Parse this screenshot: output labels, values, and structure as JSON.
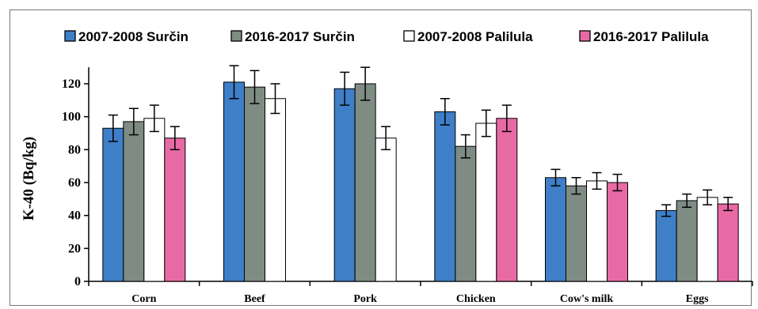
{
  "chart_data": {
    "type": "bar",
    "title": "",
    "xlabel": "",
    "ylabel": "K-40 (Bq/kg)",
    "ylim": [
      0,
      130
    ],
    "yticks": [
      0,
      20,
      40,
      60,
      80,
      100,
      120
    ],
    "grid": false,
    "legend_position": "top",
    "categories": [
      "Corn",
      "Beef",
      "Pork",
      "Chicken",
      "Cow's milk",
      "Eggs"
    ],
    "series": [
      {
        "name": "2007-2008 Surčin",
        "color": "#3f7fc8",
        "values": [
          93,
          121,
          117,
          103,
          63,
          43
        ],
        "errors": [
          8,
          10,
          10,
          8,
          5,
          3.5
        ]
      },
      {
        "name": "2016-2017 Surčin",
        "color": "#7f8c84",
        "values": [
          97,
          118,
          120,
          82,
          58,
          49
        ],
        "errors": [
          8,
          10,
          10,
          7,
          5,
          4
        ]
      },
      {
        "name": "2007-2008 Palilula",
        "color": "#ffffff",
        "values": [
          99,
          111,
          87,
          96,
          61,
          51
        ],
        "errors": [
          8,
          9,
          7,
          8,
          5,
          4.5
        ]
      },
      {
        "name": "2016-2017 Palilula",
        "color": "#e86aa5",
        "values": [
          87,
          null,
          null,
          99,
          60,
          47
        ],
        "errors": [
          7,
          null,
          null,
          8,
          5,
          4
        ]
      }
    ]
  }
}
